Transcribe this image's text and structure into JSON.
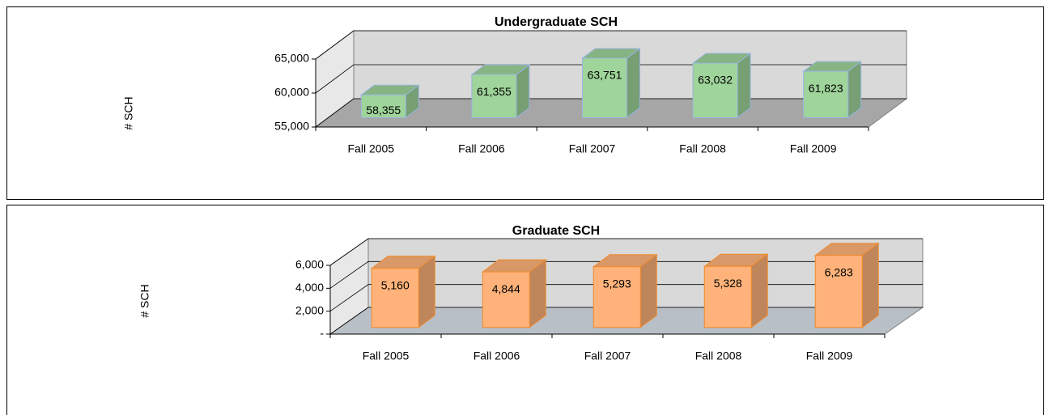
{
  "chart_data": [
    {
      "type": "bar3d",
      "title": "Undergraduate SCH",
      "y_label": "# SCH",
      "categories": [
        "Fall 2005",
        "Fall 2006",
        "Fall 2007",
        "Fall 2008",
        "Fall 2009"
      ],
      "values": [
        58355,
        61355,
        63751,
        63032,
        61823
      ],
      "value_labels": [
        "58,355",
        "61,355",
        "63,751",
        "63,032",
        "61,823"
      ],
      "color": "#9fd49a",
      "ylim": [
        55000,
        65000
      ],
      "yticks": [
        {
          "value": 55000,
          "label": "55,000"
        },
        {
          "value": 60000,
          "label": "60,000"
        },
        {
          "value": 65000,
          "label": "65,000"
        }
      ],
      "grid": true
    },
    {
      "type": "bar3d",
      "title": "Graduate SCH",
      "y_label": "# SCH",
      "categories": [
        "Fall 2005",
        "Fall 2006",
        "Fall 2007",
        "Fall 2008",
        "Fall 2009"
      ],
      "values": [
        5160,
        4844,
        5293,
        5328,
        6283
      ],
      "value_labels": [
        "5,160",
        "4,844",
        "5,293",
        "5,328",
        "6,283"
      ],
      "color": "#ffb37a",
      "ylim": [
        0,
        6000
      ],
      "yticks": [
        {
          "value": 0,
          "label": "-"
        },
        {
          "value": 2000,
          "label": "2,000"
        },
        {
          "value": 4000,
          "label": "4,000"
        },
        {
          "value": 6000,
          "label": "6,000"
        }
      ],
      "grid": true
    }
  ]
}
